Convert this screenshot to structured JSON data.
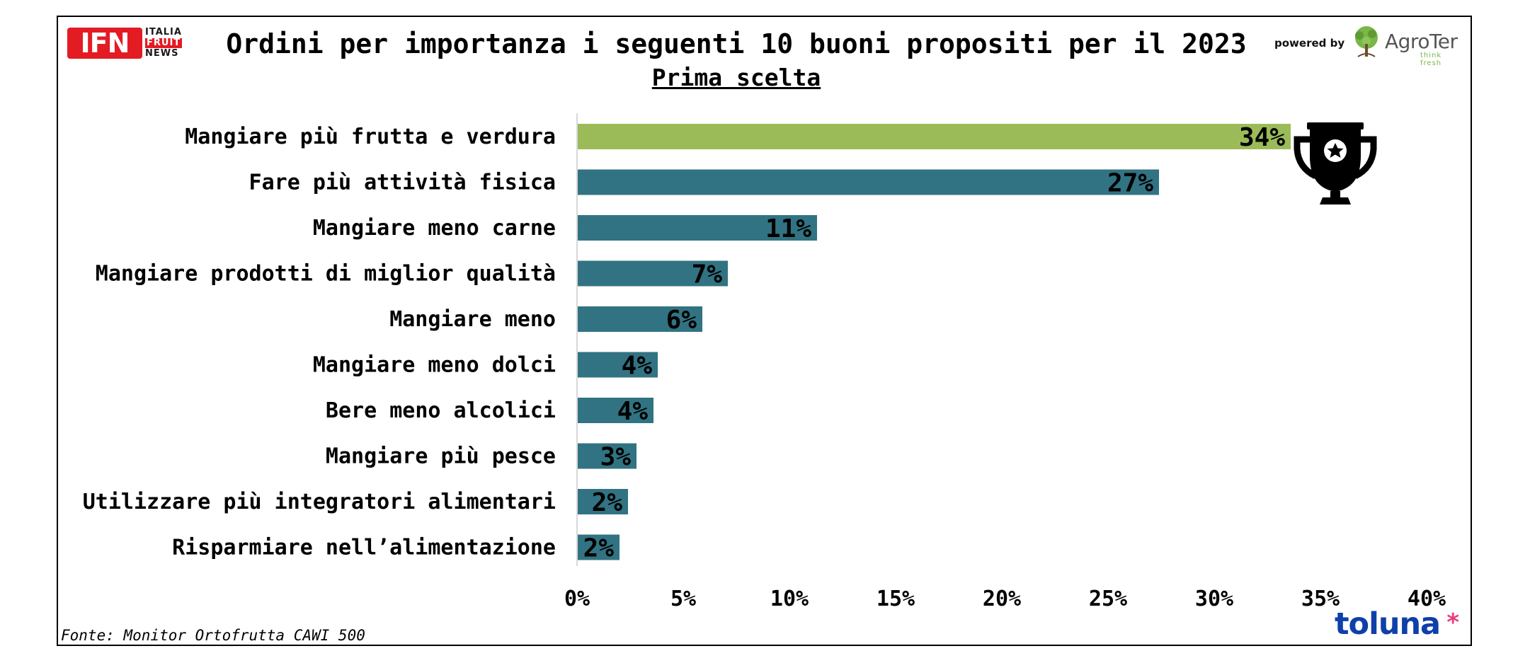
{
  "header": {
    "title": "Ordini per importanza i seguenti 10 buoni propositi per il 2023",
    "subtitle": "Prima scelta",
    "powered_by": "powered by"
  },
  "logos": {
    "ifn": {
      "main": "IFN",
      "line1": "ITALIA",
      "line2": "FRUIT",
      "line3": "NEWS"
    },
    "agroter": {
      "name": "AgroTer",
      "tagline": "think fresh"
    },
    "toluna": {
      "name": "toluna",
      "mark": "*"
    }
  },
  "footer": {
    "source": "Fonte: Monitor Ortofrutta CAWI 500"
  },
  "decoration": {
    "icon": "trophy-icon"
  },
  "colors": {
    "highlight_bar": "#9bbb59",
    "bar": "#317382",
    "ifn_red": "#e31b23",
    "toluna_blue": "#0f3fa8"
  },
  "chart_data": {
    "type": "bar",
    "orientation": "horizontal",
    "title": "Ordini per importanza i seguenti 10 buoni propositi per il 2023",
    "subtitle": "Prima scelta",
    "categories": [
      "Mangiare più frutta e verdura",
      "Fare più attività fisica",
      "Mangiare meno carne",
      "Mangiare prodotti di miglior qualità",
      "Mangiare meno",
      "Mangiare meno dolci",
      "Bere meno alcolici",
      "Mangiare più pesce",
      "Utilizzare più integratori alimentari",
      "Risparmiare nell’alimentazione"
    ],
    "values": [
      33.6,
      27.4,
      11.3,
      7.1,
      5.9,
      3.8,
      3.6,
      2.8,
      2.4,
      2.0
    ],
    "data_labels": [
      "34%",
      "27%",
      "11%",
      "7%",
      "6%",
      "4%",
      "4%",
      "3%",
      "2%",
      "2%"
    ],
    "x_ticks": [
      "0%",
      "5%",
      "10%",
      "15%",
      "20%",
      "25%",
      "30%",
      "35%",
      "40%"
    ],
    "xlim": [
      0,
      40
    ],
    "xlabel": "",
    "ylabel": "",
    "grid": false,
    "legend": "none",
    "highlight_index": 0
  }
}
